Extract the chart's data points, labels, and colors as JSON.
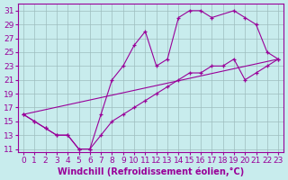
{
  "bg_color": "#c8eced",
  "grid_color": "#9dbdbe",
  "line_color": "#990099",
  "xlabel": "Windchill (Refroidissement éolien,°C)",
  "xlim": [
    -0.5,
    23.5
  ],
  "ylim": [
    10.5,
    32
  ],
  "xticks": [
    0,
    1,
    2,
    3,
    4,
    5,
    6,
    7,
    8,
    9,
    10,
    11,
    12,
    13,
    14,
    15,
    16,
    17,
    18,
    19,
    20,
    21,
    22,
    23
  ],
  "yticks": [
    11,
    13,
    15,
    17,
    19,
    21,
    23,
    25,
    27,
    29,
    31
  ],
  "line1_x": [
    0,
    1,
    2,
    3,
    4,
    5,
    6,
    7,
    8,
    9,
    10,
    11,
    12,
    13,
    14,
    15,
    16,
    17,
    19,
    20,
    21,
    22,
    23
  ],
  "line1_y": [
    16,
    15,
    14,
    13,
    13,
    11,
    11,
    16,
    21,
    23,
    26,
    28,
    23,
    24,
    30,
    31,
    31,
    30,
    31,
    30,
    29,
    25,
    24
  ],
  "line2_x": [
    0,
    1,
    2,
    3,
    4,
    5,
    6,
    7,
    8,
    9,
    10,
    11,
    12,
    13,
    14,
    15,
    16,
    17,
    18,
    19,
    20,
    21,
    22,
    23
  ],
  "line2_y": [
    16,
    15,
    14,
    13,
    13,
    11,
    11,
    13,
    15,
    16,
    17,
    18,
    19,
    20,
    21,
    22,
    22,
    23,
    23,
    24,
    21,
    22,
    23,
    24
  ],
  "line3_x": [
    0,
    23
  ],
  "line3_y": [
    16,
    24
  ],
  "fontsize_label": 7,
  "fontsize_tick": 6.5
}
